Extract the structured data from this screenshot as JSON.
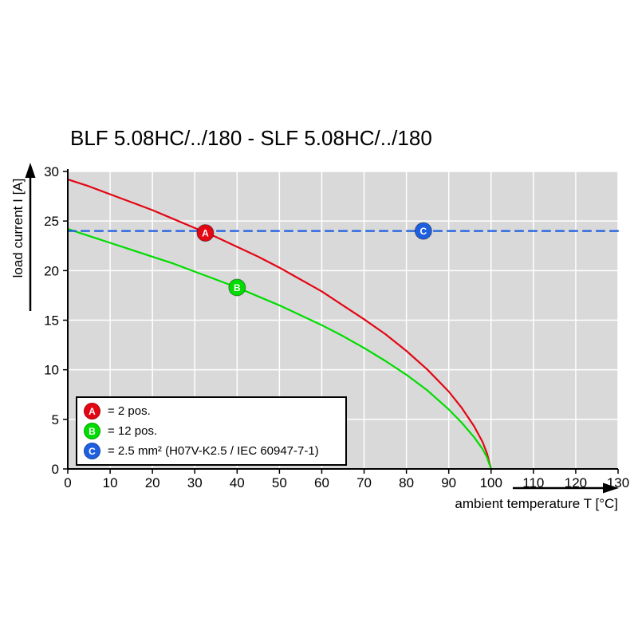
{
  "chart_data": {
    "type": "line",
    "title": "BLF 5.08HC/../180 - SLF 5.08HC/../180",
    "xlabel": "ambient temperature T [°C]",
    "ylabel": "load current I [A]",
    "xlim": [
      0,
      130
    ],
    "ylim": [
      0,
      30
    ],
    "x_ticks": [
      0,
      10,
      20,
      30,
      40,
      50,
      60,
      70,
      80,
      90,
      100,
      110,
      120,
      130
    ],
    "y_ticks": [
      0,
      5,
      10,
      15,
      20,
      25,
      30
    ],
    "grid": true,
    "legend_position": "lower left",
    "colors": {
      "plot_background": "#d9d9d9",
      "grid": "#ffffff",
      "axis": "#000000"
    },
    "series": [
      {
        "name": "A",
        "label": "= 2 pos.",
        "color": "#e30613",
        "line_style": "solid",
        "x": [
          0,
          5,
          10,
          15,
          20,
          25,
          30,
          35,
          40,
          45,
          50,
          55,
          60,
          65,
          70,
          75,
          80,
          85,
          90,
          93,
          96,
          98,
          99,
          100
        ],
        "y": [
          29.2,
          28.5,
          27.7,
          26.9,
          26.1,
          25.2,
          24.3,
          23.4,
          22.4,
          21.4,
          20.3,
          19.1,
          17.9,
          16.5,
          15.1,
          13.6,
          11.9,
          10.0,
          7.8,
          6.2,
          4.3,
          2.7,
          1.6,
          0
        ],
        "marker": {
          "letter": "A",
          "x": 32.5,
          "y": 23.8
        }
      },
      {
        "name": "B",
        "label": "= 12 pos.",
        "color": "#00dc00",
        "line_style": "solid",
        "x": [
          0,
          5,
          10,
          15,
          20,
          25,
          30,
          35,
          40,
          45,
          50,
          55,
          60,
          65,
          70,
          75,
          80,
          85,
          90,
          93,
          96,
          98,
          99,
          100
        ],
        "y": [
          24.2,
          23.5,
          22.8,
          22.1,
          21.4,
          20.7,
          19.9,
          19.1,
          18.3,
          17.4,
          16.5,
          15.5,
          14.5,
          13.4,
          12.2,
          10.9,
          9.5,
          7.9,
          6.0,
          4.7,
          3.2,
          2.0,
          1.2,
          0
        ],
        "marker": {
          "letter": "B",
          "x": 40,
          "y": 18.3
        }
      },
      {
        "name": "C",
        "label": "= 2.5 mm² (H07V-K2.5 / IEC 60947-7-1)",
        "color": "#1e5fe0",
        "line_style": "dashed",
        "x": [
          0,
          130
        ],
        "y": [
          24,
          24
        ],
        "marker": {
          "letter": "C",
          "x": 84,
          "y": 24
        }
      }
    ]
  }
}
